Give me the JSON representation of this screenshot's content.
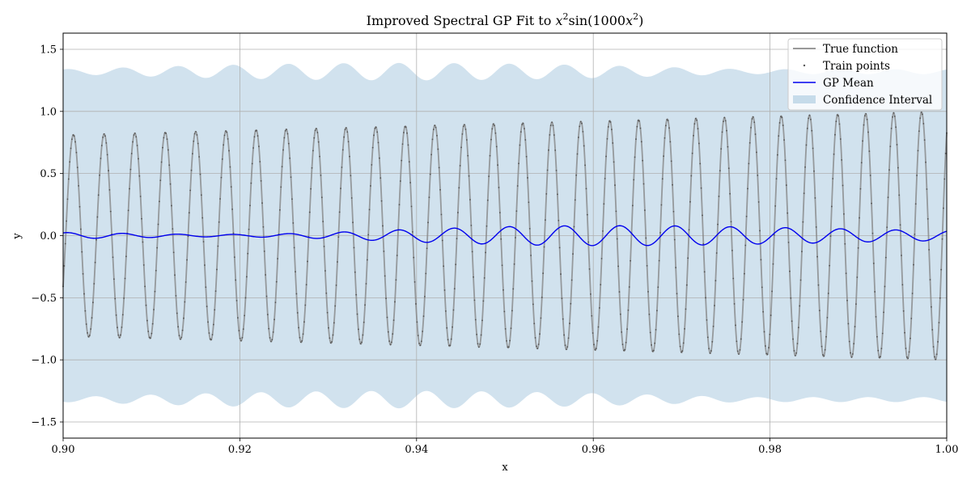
{
  "chart_data": {
    "type": "line",
    "title": "Improved Spectral GP Fit to x²sin(1000x²)",
    "title_parts": {
      "prefix": "Improved Spectral GP Fit to ",
      "math_x1": "x",
      "math_sup1": "2",
      "math_mid": "sin(1000",
      "math_x2": "x",
      "math_sup2": "2",
      "math_end": ")"
    },
    "xlabel": "x",
    "ylabel": "y",
    "xlim": [
      0.9,
      1.0
    ],
    "ylim": [
      -1.63,
      1.63
    ],
    "xticks": [
      0.9,
      0.92,
      0.94,
      0.96,
      0.98,
      1.0
    ],
    "xtick_labels": [
      "0.90",
      "0.92",
      "0.94",
      "0.96",
      "0.98",
      "1.00"
    ],
    "yticks": [
      -1.5,
      -1.0,
      -0.5,
      0.0,
      0.5,
      1.0,
      1.5
    ],
    "ytick_labels": [
      "−1.5",
      "−1.0",
      "−0.5",
      "0.0",
      "0.5",
      "1.0",
      "1.5"
    ],
    "grid": true,
    "legend_position": "top-right",
    "series": [
      {
        "name": "True function",
        "kind": "line",
        "color": "#808080",
        "formula": "x^2*sin(1000*x^2)",
        "x_range": [
          0.9,
          1.0
        ]
      },
      {
        "name": "Train points",
        "kind": "scatter",
        "color": "#555555",
        "formula": "x^2*sin(1000*x^2)",
        "x_range": [
          0.9,
          1.0
        ],
        "count": 800
      },
      {
        "name": "GP Mean",
        "kind": "line",
        "color": "#0000ee",
        "envelope_x": [
          0.9,
          0.905,
          0.91,
          0.915,
          0.92,
          0.925,
          0.93,
          0.935,
          0.94,
          0.945,
          0.95,
          0.955,
          0.96,
          0.965,
          0.97,
          0.975,
          0.98,
          0.985,
          0.99,
          0.995,
          1.0
        ],
        "envelope_amp": [
          0.025,
          0.02,
          0.015,
          0.01,
          0.01,
          0.015,
          0.025,
          0.038,
          0.052,
          0.062,
          0.072,
          0.078,
          0.08,
          0.08,
          0.078,
          0.072,
          0.066,
          0.06,
          0.052,
          0.045,
          0.04
        ],
        "period": 0.00625,
        "phase_x0": 0.9005
      },
      {
        "name": "Confidence Interval",
        "kind": "band",
        "color": "#c6dbea",
        "upper_base": 1.32,
        "lower_base": -1.32,
        "ripple_amp": [
          0.02,
          0.07
        ],
        "period": 0.00625
      }
    ]
  }
}
